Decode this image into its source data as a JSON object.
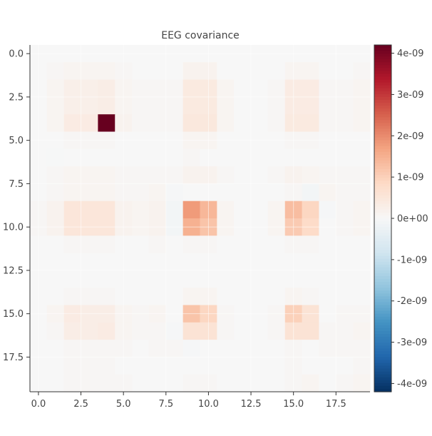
{
  "chart_data": {
    "type": "heatmap",
    "title": "EEG covariance",
    "xlabel": "",
    "ylabel": "",
    "n_rows": 20,
    "n_cols": 20,
    "xlim": [
      -0.5,
      19.5
    ],
    "ylim": [
      19.5,
      -0.5
    ],
    "x_ticks": [
      "0.0",
      "2.5",
      "5.0",
      "7.5",
      "10.0",
      "12.5",
      "15.0",
      "17.5"
    ],
    "y_ticks": [
      "0.0",
      "2.5",
      "5.0",
      "7.5",
      "10.0",
      "12.5",
      "15.0",
      "17.5"
    ],
    "tick_values": [
      0,
      2.5,
      5,
      7.5,
      10,
      12.5,
      15,
      17.5
    ],
    "grid": true,
    "colormap": "RdBu_r",
    "color_range": [
      -4.2e-09,
      4.2e-09
    ],
    "colorbar_ticks": [
      "4e-09",
      "3e-09",
      "2e-09",
      "1e-09",
      "0e+00",
      "-1e-09",
      "-2e-09",
      "-3e-09",
      "-4e-09"
    ],
    "colorbar_tick_values": [
      4e-09,
      3e-09,
      2e-09,
      1e-09,
      0,
      -1e-09,
      -2e-09,
      -3e-09,
      -4e-09
    ],
    "values_1e-9": [
      [
        0.0,
        0.0,
        0.0,
        0.0,
        0.0,
        0.0,
        0.0,
        0.0,
        0.0,
        0.0,
        0.0,
        0.0,
        0.0,
        0.0,
        0.0,
        0.0,
        0.0,
        0.0,
        0.0,
        0.0
      ],
      [
        0.0,
        0.05,
        0.1,
        0.1,
        0.1,
        0.05,
        0.0,
        0.0,
        0.0,
        0.15,
        0.15,
        0.0,
        0.0,
        0.0,
        0.0,
        0.1,
        0.1,
        0.0,
        0.0,
        0.05
      ],
      [
        0.0,
        0.1,
        0.25,
        0.25,
        0.3,
        0.1,
        0.05,
        0.05,
        0.05,
        0.4,
        0.4,
        0.1,
        0.0,
        0.0,
        0.05,
        0.35,
        0.35,
        0.05,
        0.05,
        0.1
      ],
      [
        0.0,
        0.1,
        0.25,
        0.25,
        0.3,
        0.1,
        0.05,
        0.05,
        0.05,
        0.4,
        0.4,
        0.1,
        0.0,
        0.0,
        0.05,
        0.35,
        0.35,
        0.05,
        0.05,
        0.1
      ],
      [
        0.0,
        0.1,
        0.35,
        0.35,
        4.2,
        0.15,
        0.05,
        0.05,
        0.05,
        0.45,
        0.45,
        0.1,
        0.0,
        0.0,
        0.05,
        0.4,
        0.4,
        0.05,
        0.05,
        0.1
      ],
      [
        0.0,
        0.0,
        0.05,
        0.05,
        0.05,
        0.0,
        0.0,
        0.0,
        0.0,
        0.1,
        0.1,
        0.0,
        0.0,
        0.0,
        0.0,
        0.05,
        0.05,
        0.0,
        0.0,
        0.0
      ],
      [
        0.0,
        -0.02,
        0.0,
        0.0,
        0.0,
        0.0,
        0.0,
        0.0,
        0.0,
        0.05,
        0.0,
        0.0,
        0.0,
        0.0,
        0.0,
        0.0,
        0.0,
        0.0,
        0.0,
        0.0
      ],
      [
        0.0,
        0.05,
        0.1,
        0.1,
        0.1,
        0.05,
        0.05,
        0.05,
        0.05,
        0.15,
        0.15,
        0.05,
        0.0,
        0.0,
        0.05,
        0.15,
        0.1,
        0.05,
        0.05,
        0.05
      ],
      [
        0.0,
        0.05,
        0.1,
        0.1,
        0.1,
        0.05,
        0.05,
        0.1,
        -0.05,
        0.0,
        0.0,
        0.0,
        0.0,
        0.0,
        0.0,
        0.05,
        -0.1,
        0.1,
        0.05,
        0.05
      ],
      [
        0.05,
        0.15,
        0.5,
        0.5,
        0.5,
        0.15,
        0.1,
        0.15,
        -0.1,
        1.8,
        1.4,
        0.1,
        0.0,
        0.0,
        0.1,
        1.3,
        0.9,
        -0.05,
        0.05,
        0.1
      ],
      [
        0.05,
        0.15,
        0.5,
        0.5,
        0.5,
        0.15,
        0.1,
        0.15,
        -0.1,
        1.5,
        1.2,
        0.1,
        0.0,
        0.0,
        0.1,
        1.1,
        0.8,
        0.0,
        0.05,
        0.1
      ],
      [
        0.0,
        0.0,
        0.05,
        0.05,
        0.05,
        0.0,
        0.0,
        0.05,
        0.0,
        0.05,
        0.05,
        0.0,
        0.0,
        0.0,
        0.0,
        0.05,
        0.05,
        0.0,
        0.0,
        0.0
      ],
      [
        0.0,
        0.0,
        0.0,
        0.0,
        0.0,
        0.0,
        0.0,
        0.0,
        0.0,
        0.0,
        0.0,
        0.0,
        0.0,
        0.0,
        0.0,
        0.0,
        0.0,
        0.0,
        0.0,
        0.0
      ],
      [
        0.0,
        0.0,
        0.0,
        0.0,
        0.0,
        0.0,
        0.0,
        0.0,
        0.0,
        0.0,
        0.0,
        0.0,
        0.0,
        0.0,
        0.0,
        0.0,
        0.0,
        0.0,
        0.0,
        0.0
      ],
      [
        0.0,
        0.0,
        0.05,
        0.05,
        0.05,
        0.0,
        0.0,
        0.0,
        0.0,
        0.1,
        0.1,
        0.0,
        0.0,
        0.0,
        0.0,
        0.1,
        0.05,
        0.0,
        0.0,
        0.0
      ],
      [
        0.0,
        0.1,
        0.35,
        0.3,
        0.3,
        0.1,
        0.05,
        0.1,
        0.0,
        1.2,
        0.9,
        0.05,
        0.0,
        0.0,
        0.05,
        1.0,
        0.6,
        0.0,
        0.05,
        0.05
      ],
      [
        0.0,
        0.05,
        0.3,
        0.3,
        0.35,
        0.1,
        0.05,
        0.05,
        -0.05,
        0.6,
        0.6,
        0.05,
        0.0,
        0.0,
        0.05,
        0.6,
        0.6,
        0.05,
        0.05,
        0.1
      ],
      [
        0.0,
        0.0,
        0.05,
        0.05,
        0.05,
        0.05,
        0.0,
        0.05,
        0.05,
        -0.05,
        0.0,
        0.0,
        0.0,
        0.0,
        0.0,
        0.05,
        0.0,
        0.05,
        0.05,
        0.05
      ],
      [
        0.0,
        0.0,
        0.05,
        0.05,
        0.05,
        0.0,
        0.0,
        0.0,
        0.0,
        0.0,
        0.0,
        0.0,
        0.0,
        0.0,
        0.0,
        0.05,
        0.0,
        0.0,
        0.0,
        0.05
      ],
      [
        0.0,
        0.0,
        0.05,
        0.05,
        0.05,
        0.05,
        0.0,
        0.0,
        0.0,
        0.05,
        0.05,
        0.0,
        0.0,
        0.0,
        0.0,
        0.05,
        0.1,
        0.0,
        0.05,
        0.1
      ]
    ]
  }
}
